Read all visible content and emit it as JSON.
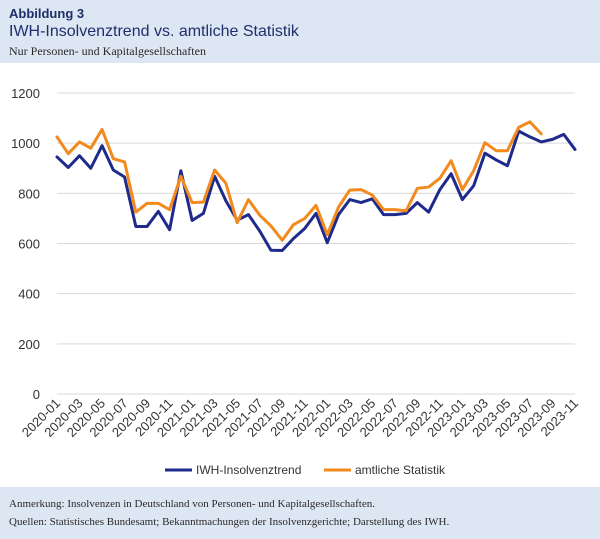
{
  "header": {
    "figure_label": "Abbildung 3",
    "title": "IWH-Insolvenztrend vs. amtliche Statistik",
    "subtitle": "Nur Personen- und Kapitalgesellschaften"
  },
  "footer": {
    "note": "Anmerkung: Insolvenzen in Deutschland von Personen- und Kapitalgesellschaften.",
    "sources": "Quellen: Statistisches Bundesamt; Bekanntmachungen der Insolvenzgerichte; Darstellung des IWH."
  },
  "colors": {
    "background": "#dde6f3",
    "iwh_series": "#1e2a8c",
    "official_series": "#f28a1e",
    "gridline": "#d9d9d9"
  },
  "chart_data": {
    "type": "line",
    "title": "",
    "xlabel": "",
    "ylabel": "",
    "ylim": [
      0,
      1200
    ],
    "yticks": [
      0,
      200,
      400,
      600,
      800,
      1000,
      1200
    ],
    "grid": true,
    "legend_position": "bottom",
    "x": [
      "2020-01",
      "2020-02",
      "2020-03",
      "2020-04",
      "2020-05",
      "2020-06",
      "2020-07",
      "2020-08",
      "2020-09",
      "2020-10",
      "2020-11",
      "2020-12",
      "2021-01",
      "2021-02",
      "2021-03",
      "2021-04",
      "2021-05",
      "2021-06",
      "2021-07",
      "2021-08",
      "2021-09",
      "2021-10",
      "2021-11",
      "2021-12",
      "2022-01",
      "2022-02",
      "2022-03",
      "2022-04",
      "2022-05",
      "2022-06",
      "2022-07",
      "2022-08",
      "2022-09",
      "2022-10",
      "2022-11",
      "2022-12",
      "2023-01",
      "2023-02",
      "2023-03",
      "2023-04",
      "2023-05",
      "2023-06",
      "2023-07",
      "2023-08",
      "2023-09",
      "2023-10",
      "2023-11"
    ],
    "xticks": [
      "2020-01",
      "2020-03",
      "2020-05",
      "2020-07",
      "2020-09",
      "2020-11",
      "2021-01",
      "2021-03",
      "2021-05",
      "2021-07",
      "2021-09",
      "2021-11",
      "2022-01",
      "2022-03",
      "2022-05",
      "2022-07",
      "2022-09",
      "2022-11",
      "2023-01",
      "2023-03",
      "2023-05",
      "2023-07",
      "2023-09",
      "2023-11"
    ],
    "series": [
      {
        "name": "IWH-Insolvenztrend",
        "color": "#1e2a8c",
        "values": [
          945,
          903,
          950,
          900,
          990,
          893,
          865,
          668,
          668,
          728,
          655,
          890,
          692,
          720,
          868,
          770,
          693,
          715,
          650,
          573,
          572,
          620,
          660,
          720,
          603,
          715,
          775,
          763,
          778,
          715,
          715,
          720,
          763,
          725,
          815,
          878,
          775,
          830,
          960,
          933,
          910,
          1048,
          1025,
          1005,
          1015,
          1035,
          975
        ]
      },
      {
        "name": "amtliche Statistik",
        "color": "#f28a1e",
        "values": [
          1025,
          958,
          1005,
          980,
          1055,
          938,
          925,
          725,
          760,
          760,
          735,
          868,
          763,
          765,
          893,
          840,
          683,
          775,
          713,
          670,
          613,
          675,
          700,
          752,
          635,
          745,
          813,
          815,
          793,
          735,
          735,
          730,
          820,
          825,
          860,
          930,
          815,
          890,
          1002,
          970,
          970,
          1063,
          1085,
          1037,
          null,
          null,
          null
        ]
      }
    ]
  }
}
